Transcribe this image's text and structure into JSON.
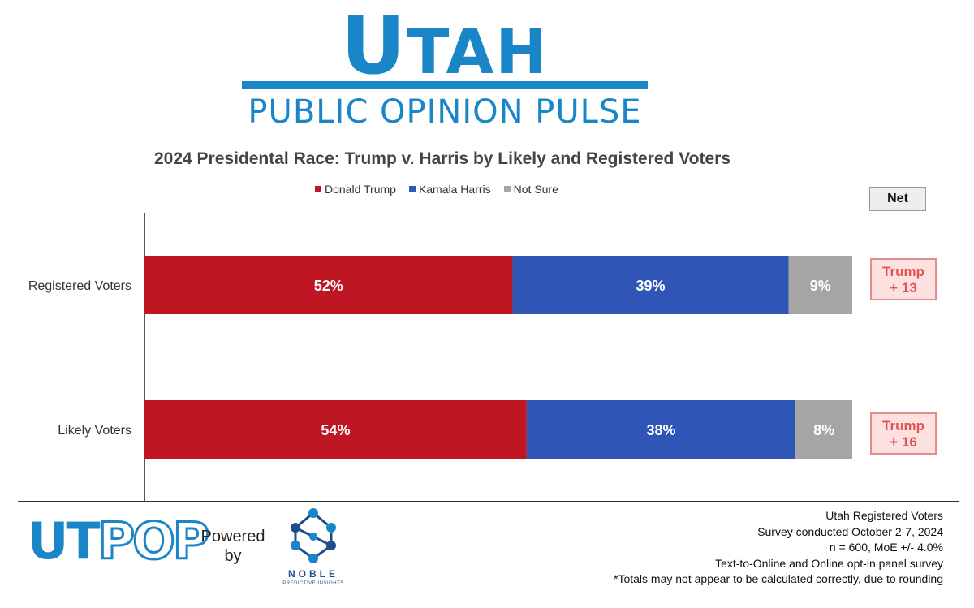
{
  "header": {
    "title_cap": "U",
    "title_rest": "TAH",
    "subtitle": "PUBLIC OPINION PULSE"
  },
  "net_header": "Net",
  "chart_data": {
    "type": "bar",
    "orientation": "horizontal",
    "stacked": true,
    "title": "2024 Presidental Race: Trump v. Harris by Likely and Registered Voters",
    "categories": [
      "Registered Voters",
      "Likely Voters"
    ],
    "series": [
      {
        "name": "Donald Trump",
        "values": [
          52,
          54
        ],
        "labels": [
          "52%",
          "54%"
        ],
        "color": "#be1622"
      },
      {
        "name": "Kamala Harris",
        "values": [
          39,
          38
        ],
        "labels": [
          "39%",
          "38%"
        ],
        "color": "#2f56b7"
      },
      {
        "name": "Not Sure",
        "values": [
          9,
          8
        ],
        "labels": [
          "9%",
          "8%"
        ],
        "color": "#a5a5a5"
      }
    ],
    "xlim": [
      0,
      100
    ],
    "legend": "top",
    "net": [
      {
        "leader": "Trump",
        "margin": "+ 13"
      },
      {
        "leader": "Trump",
        "margin": "+ 16"
      }
    ]
  },
  "footer": {
    "logo_ut": "UT",
    "logo_pop": "POP",
    "powered_by": "Powered by",
    "noble_name": "NOBLE",
    "noble_sub": "PREDICTIVE INSIGHTS",
    "notes": [
      "Utah Registered Voters",
      "Survey conducted October 2-7, 2024",
      "n = 600, MoE +/- 4.0%",
      "Text-to-Online and Online opt-in panel survey",
      "*Totals may not appear to be calculated correctly, due to rounding"
    ]
  }
}
